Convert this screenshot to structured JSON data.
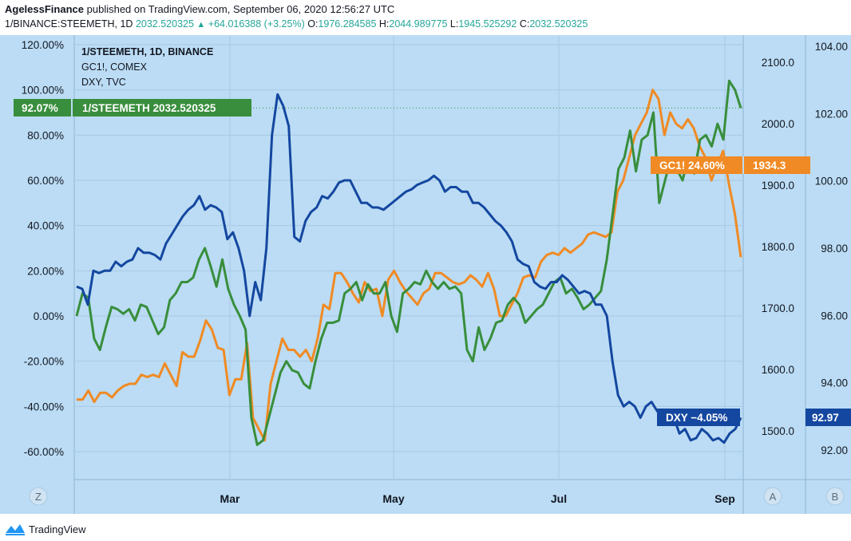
{
  "header": {
    "publisher": "AgelessFinance",
    "published_text": "published on TradingView.com, September 06, 2020 12:56:27 UTC",
    "symbol_line": "1/BINANCE:STEEMETH, 1D",
    "last": "2032.520325",
    "change": "+64.016388 (+3.25%)",
    "o_label": "O:",
    "o_value": "1976.284585",
    "h_label": "H:",
    "h_value": "2044.989775",
    "l_label": "L:",
    "l_value": "1945.525292",
    "c_label": "C:",
    "c_value": "2032.520325"
  },
  "legend": {
    "line1": "1/STEEMETH, 1D, BINANCE",
    "line2": "GC1!, COMEX",
    "line3": "DXY, TVC"
  },
  "badges": {
    "steem_pct": "92.07%",
    "steem_label": "1/STEEMETH 2032.520325",
    "gc_label": "GC1! 24.60%",
    "gc_value": "1934.3",
    "dxy_label": "DXY −4.05%",
    "dxy_value": "92.97"
  },
  "axis_buttons": {
    "left": "Z",
    "mid": "A",
    "right": "B"
  },
  "footer": {
    "brand": "TradingView"
  },
  "colors": {
    "bg_plot": "#bbdcf4",
    "steem": "#388e3c",
    "gold": "#f08a24",
    "dxy": "#1447a0",
    "grid": "#a9c9e3"
  },
  "chart_data": {
    "type": "line",
    "x_ticks": [
      "Mar",
      "May",
      "Jul",
      "Sep"
    ],
    "y_percent_ticks": [
      "120.00%",
      "100.00%",
      "80.00%",
      "60.00%",
      "40.00%",
      "20.00%",
      "0.00%",
      "-20.00%",
      "-40.00%",
      "-60.00%"
    ],
    "y_percent_range": [
      -66,
      120
    ],
    "y_gold_ticks": [
      "2100.0",
      "2000.0",
      "1900.0",
      "1800.0",
      "1700.0",
      "1600.0",
      "1500.0"
    ],
    "y_dxy_ticks": [
      "104.00",
      "102.00",
      "100.00",
      "98.00",
      "96.00",
      "94.00",
      "92.00"
    ],
    "series": [
      {
        "name": "1/STEEMETH",
        "unit": "percent",
        "values": [
          0,
          10,
          8,
          -10,
          -15,
          -5,
          4,
          3,
          1,
          3,
          -2,
          5,
          4,
          -2,
          -8,
          -5,
          7,
          10,
          15,
          15,
          17,
          25,
          30,
          22,
          13,
          25,
          12,
          5,
          0,
          -6,
          -45,
          -57,
          -55,
          -45,
          -35,
          -25,
          -20,
          -24,
          -25,
          -30,
          -32,
          -20,
          -10,
          -3,
          -3,
          -2,
          10,
          12,
          15,
          7,
          14,
          10,
          10,
          15,
          0,
          -7,
          10,
          12,
          15,
          14,
          20,
          15,
          12,
          15,
          12,
          13,
          10,
          -15,
          -20,
          -5,
          -15,
          -10,
          -3,
          -2,
          5,
          8,
          5,
          -3,
          0,
          3,
          5,
          10,
          15,
          17,
          10,
          12,
          8,
          3,
          5,
          8,
          11,
          25,
          45,
          65,
          70,
          82,
          64,
          78,
          80,
          90,
          50,
          60,
          70,
          65,
          60,
          70,
          63,
          78,
          80,
          75,
          85,
          78,
          104,
          100,
          92
        ]
      },
      {
        "name": "GC1!",
        "unit": "percent",
        "values": [
          -37,
          -37,
          -33,
          -38,
          -34,
          -34,
          -36,
          -33,
          -31,
          -30,
          -30,
          -26,
          -27,
          -26,
          -27,
          -21,
          -26,
          -31,
          -16,
          -18,
          -18,
          -11,
          -2,
          -6,
          -14,
          -15,
          -35,
          -28,
          -28,
          -12,
          -45,
          -50,
          -55,
          -30,
          -20,
          -10,
          -15,
          -15,
          -18,
          -15,
          -20,
          -10,
          5,
          3,
          19,
          19,
          15,
          10,
          6,
          15,
          11,
          12,
          0,
          16,
          20,
          15,
          11,
          8,
          5,
          10,
          12,
          19,
          19,
          17,
          15,
          14,
          15,
          18,
          16,
          13,
          19,
          12,
          0,
          0,
          5,
          10,
          17,
          18,
          17,
          24,
          27,
          28,
          27,
          30,
          28,
          30,
          32,
          36,
          37,
          36,
          35,
          37,
          55,
          60,
          70,
          80,
          85,
          90,
          100,
          96,
          80,
          90,
          85,
          83,
          87,
          83,
          75,
          70,
          60,
          67,
          73,
          58,
          45,
          26
        ]
      },
      {
        "name": "DXY",
        "unit": "percent",
        "values": [
          13,
          12,
          5,
          20,
          19,
          20,
          20,
          24,
          22,
          24,
          25,
          30,
          28,
          28,
          27,
          25,
          32,
          36,
          40,
          44,
          47,
          49,
          53,
          47,
          49,
          48,
          46,
          34,
          37,
          30,
          20,
          0,
          15,
          7,
          30,
          80,
          98,
          93,
          84,
          35,
          33,
          42,
          46,
          48,
          53,
          52,
          55,
          59,
          60,
          60,
          55,
          50,
          50,
          48,
          48,
          47,
          49,
          51,
          53,
          55,
          56,
          58,
          59,
          60,
          62,
          60,
          55,
          57,
          57,
          55,
          55,
          50,
          50,
          48,
          45,
          42,
          40,
          37,
          33,
          25,
          23,
          22,
          15,
          13,
          12,
          15,
          15,
          18,
          16,
          13,
          10,
          11,
          10,
          5,
          5,
          0,
          -20,
          -35,
          -40,
          -38,
          -40,
          -45,
          -40,
          -38,
          -42,
          -45,
          -48,
          -45,
          -52,
          -50,
          -55,
          -54,
          -50,
          -52,
          -55,
          -54,
          -56,
          -52,
          -50,
          -45
        ]
      }
    ]
  }
}
